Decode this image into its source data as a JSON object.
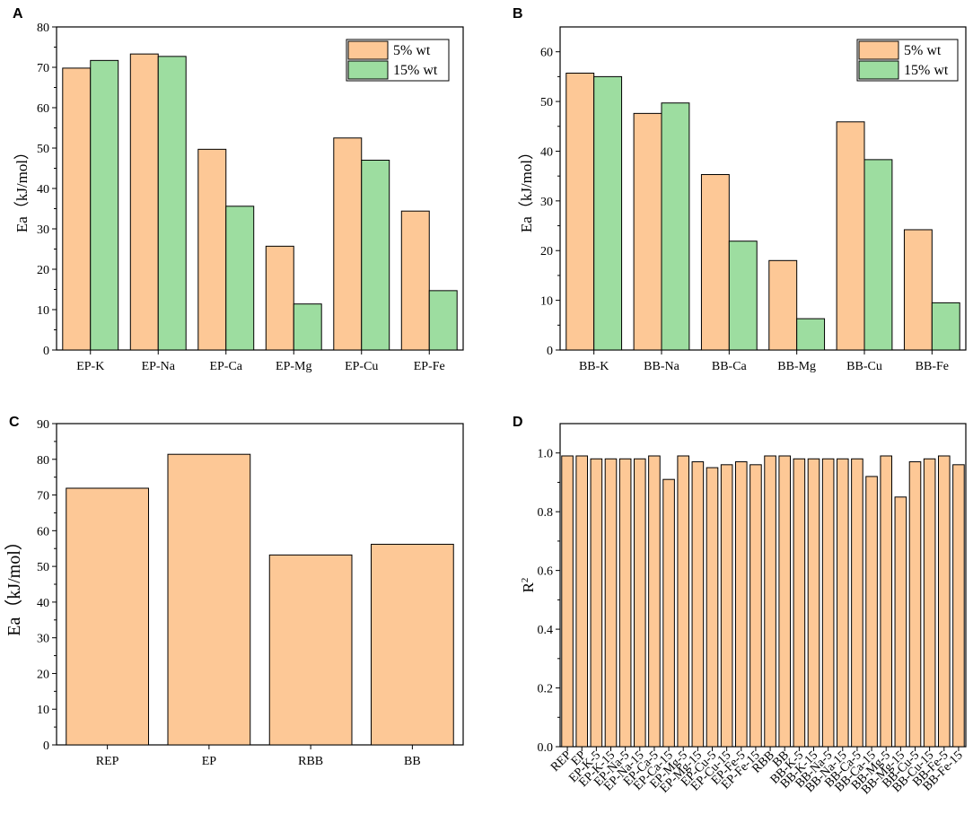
{
  "colors": {
    "orange": "#FDC896",
    "green": "#9DDDA0",
    "edge": "#000000"
  },
  "chart_data": [
    {
      "panel": "A",
      "type": "bar",
      "categories": [
        "EP-K",
        "EP-Na",
        "EP-Ca",
        "EP-Mg",
        "EP-Cu",
        "EP-Fe"
      ],
      "series": [
        {
          "name": "5% wt",
          "values": [
            69.8,
            73.3,
            49.7,
            25.7,
            52.5,
            34.4
          ]
        },
        {
          "name": "15% wt",
          "values": [
            71.7,
            72.7,
            35.6,
            11.4,
            47.0,
            14.7
          ]
        }
      ],
      "ylabel": "Ea（kJ/mol）",
      "ylim": [
        0,
        80
      ],
      "yticks": [
        0,
        10,
        20,
        30,
        40,
        50,
        60,
        70,
        80
      ],
      "legend": "top-right"
    },
    {
      "panel": "B",
      "type": "bar",
      "categories": [
        "BB-K",
        "BB-Na",
        "BB-Ca",
        "BB-Mg",
        "BB-Cu",
        "BB-Fe"
      ],
      "series": [
        {
          "name": "5% wt",
          "values": [
            55.7,
            47.6,
            35.3,
            18.0,
            45.9,
            24.2
          ]
        },
        {
          "name": "15% wt",
          "values": [
            55.0,
            49.7,
            21.9,
            6.3,
            38.3,
            9.5
          ]
        }
      ],
      "ylabel": "Ea（kJ/mol）",
      "ylim": [
        0,
        65
      ],
      "yticks": [
        0,
        10,
        20,
        30,
        40,
        50,
        60
      ],
      "legend": "top-right"
    },
    {
      "panel": "C",
      "type": "bar",
      "categories": [
        "REP",
        "EP",
        "RBB",
        "BB"
      ],
      "series": [
        {
          "name": "Ea",
          "values": [
            71.9,
            81.4,
            53.2,
            56.2
          ]
        }
      ],
      "ylabel": "Ea（kJ/mol）",
      "ylim": [
        0,
        90
      ],
      "yticks": [
        0,
        10,
        20,
        30,
        40,
        50,
        60,
        70,
        80,
        90
      ]
    },
    {
      "panel": "D",
      "type": "bar",
      "categories": [
        "REP",
        "EP",
        "EP-K-5",
        "EP-K-15",
        "EP-Na-5",
        "EP-Na-15",
        "EP-Ca-5",
        "EP-Ca-15",
        "EP-Mg-5",
        "EP-Mg-15",
        "EP-Cu-5",
        "EP-Cu-15",
        "EP-Fe-5",
        "EP-Fe-15",
        "RBB",
        "BB",
        "BB-K-5",
        "BB-K-15",
        "BB-Na-5",
        "BB-Na-15",
        "BB-Ca-5",
        "BB-Ca-15",
        "BB-Mg-5",
        "BB-Mg-15",
        "BB-Cu-5",
        "BB-Cu-15",
        "BB-Fe-5",
        "BB-Fe-15"
      ],
      "series": [
        {
          "name": "R2",
          "values": [
            0.99,
            0.99,
            0.98,
            0.98,
            0.98,
            0.98,
            0.99,
            0.91,
            0.99,
            0.97,
            0.95,
            0.96,
            0.97,
            0.96,
            0.99,
            0.99,
            0.98,
            0.98,
            0.98,
            0.98,
            0.98,
            0.92,
            0.99,
            0.85,
            0.97,
            0.98,
            0.99,
            0.96
          ]
        }
      ],
      "ylabel": "R2",
      "ylim": [
        0,
        1.1
      ],
      "yticks": [
        "0.0",
        "0.2",
        "0.4",
        "0.6",
        "0.8",
        "1.0"
      ]
    }
  ]
}
